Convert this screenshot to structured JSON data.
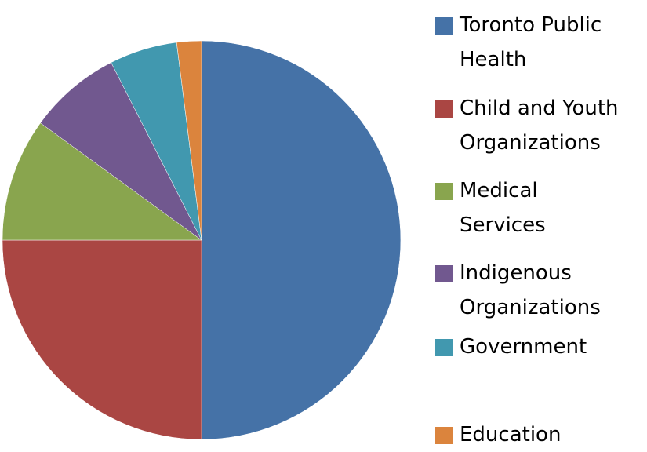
{
  "chart_data": {
    "type": "pie",
    "categories": [
      "Toronto Public Health",
      "Child and Youth Organizations",
      "Medical Services",
      "Indigenous Organizations",
      "Government",
      "Education"
    ],
    "values": [
      50,
      25,
      10,
      7.5,
      5.5,
      2
    ],
    "colors": [
      "#4572a7",
      "#aa4643",
      "#89a54e",
      "#71588f",
      "#4198af",
      "#db843d"
    ],
    "legend": "right"
  }
}
